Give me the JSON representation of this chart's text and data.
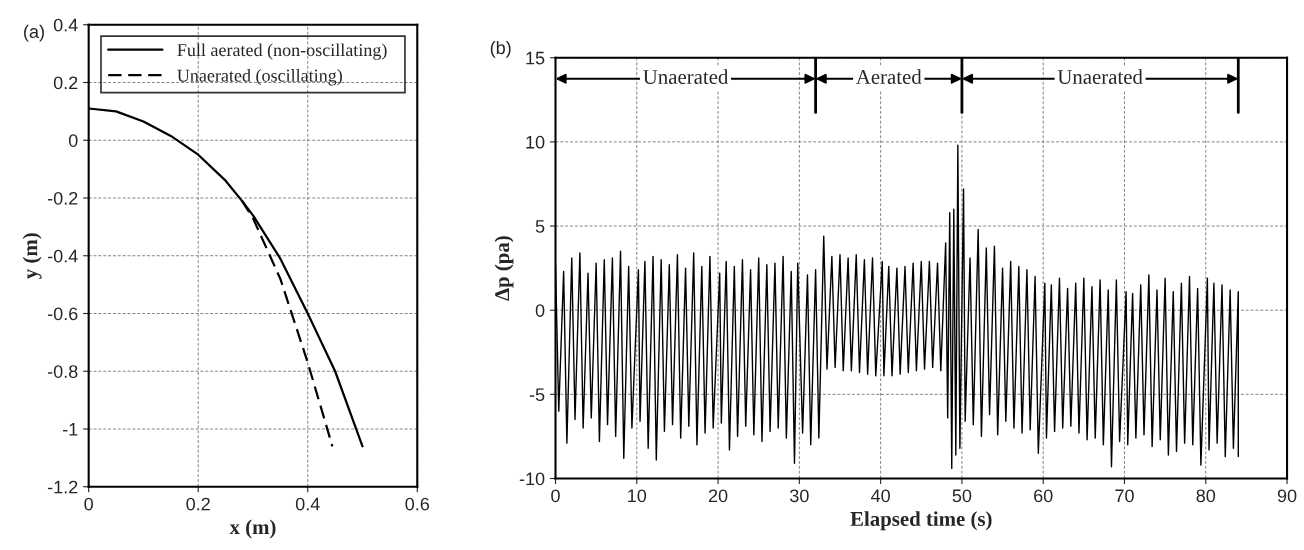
{
  "chart_data": [
    {
      "type": "line",
      "title": "(a)",
      "xlabel": "x (m)",
      "ylabel": "y (m)",
      "xlim": [
        0,
        0.6
      ],
      "ylim": [
        -1.2,
        0.4
      ],
      "xticks": [
        0,
        0.2,
        0.4,
        0.6
      ],
      "yticks": [
        -1.2,
        -1,
        -0.8,
        -0.6,
        -0.4,
        -0.2,
        0,
        0.2,
        0.4
      ],
      "grid": true,
      "legend": "top",
      "series": [
        {
          "name": "Full aerated (non-oscillating)",
          "color": "#000000",
          "line_style": "solid",
          "x": [
            0,
            0.05,
            0.1,
            0.15,
            0.2,
            0.25,
            0.28,
            0.3,
            0.35,
            0.4,
            0.45,
            0.5
          ],
          "values": [
            0.11,
            0.1,
            0.065,
            0.015,
            -0.05,
            -0.14,
            -0.21,
            -0.26,
            -0.41,
            -0.6,
            -0.8,
            -1.06
          ]
        },
        {
          "name": "Unaerated (oscillating)",
          "color": "#000000",
          "line_style": "dashed",
          "x": [
            0.28,
            0.3,
            0.35,
            0.4,
            0.445
          ],
          "values": [
            -0.21,
            -0.27,
            -0.48,
            -0.77,
            -1.06
          ]
        }
      ]
    },
    {
      "type": "line",
      "title": "(b)",
      "xlabel": "Elapsed time (s)",
      "ylabel": "Δp (pa)",
      "xlim": [
        0,
        90
      ],
      "ylim": [
        -10,
        15
      ],
      "xticks": [
        0,
        10,
        20,
        30,
        40,
        50,
        60,
        70,
        80,
        90
      ],
      "yticks": [
        -10,
        -5,
        0,
        5,
        10,
        15
      ],
      "grid": true,
      "ref_lines": [
        {
          "axis": "x",
          "value": 32
        },
        {
          "axis": "x",
          "value": 50
        },
        {
          "axis": "x",
          "value": 84
        }
      ],
      "annotations": [
        "Unaerated",
        "Aerated",
        "Unaerated"
      ],
      "series": [
        {
          "color": "#000000",
          "line_style": "solid",
          "x": [
            0,
            0.4,
            1,
            1.4,
            2,
            2.4,
            3,
            3.4,
            4,
            4.4,
            5,
            5.4,
            6,
            6.4,
            7,
            7.4,
            8,
            8.4,
            9,
            9.4,
            10.2,
            10.4,
            11,
            11.4,
            12,
            12.4,
            13,
            13.4,
            14,
            14.4,
            15,
            15.4,
            16,
            16.4,
            17,
            17.4,
            18,
            18.4,
            19,
            19.4,
            20.2,
            20.4,
            21,
            21.4,
            22,
            22.4,
            23,
            23.4,
            24,
            24.4,
            25,
            25.4,
            26,
            26.4,
            27,
            27.4,
            28,
            28.4,
            29,
            29.4,
            29.8,
            30.4,
            31,
            31.4,
            32,
            32.4,
            33,
            33.4,
            34,
            34.4,
            35,
            35.4,
            36,
            36.4,
            37,
            37.4,
            38,
            38.4,
            39,
            39.4,
            40.2,
            40.4,
            41,
            41.4,
            42,
            42.4,
            43,
            43.4,
            44,
            44.4,
            45,
            45.4,
            46,
            46.4,
            47,
            47.4,
            48,
            48.25,
            48.5,
            48.75,
            49,
            49.25,
            49.5,
            49.75,
            50.2,
            50.4,
            51,
            51.4,
            52,
            52.4,
            53,
            53.4,
            54,
            54.4,
            55,
            55.4,
            56,
            56.4,
            57,
            57.4,
            58,
            58.4,
            59,
            59.4,
            60.2,
            60.4,
            61,
            61.4,
            62,
            62.4,
            63,
            63.4,
            64,
            64.4,
            65,
            65.4,
            66,
            66.4,
            67,
            67.4,
            68,
            68.4,
            69,
            69.4,
            70.2,
            70.4,
            71,
            71.4,
            72,
            72.4,
            73,
            73.4,
            74,
            74.4,
            75,
            75.4,
            76,
            76.4,
            77,
            77.4,
            78,
            78.4,
            79,
            79.4,
            80.2,
            80.4,
            81,
            81.4,
            82,
            82.4,
            83,
            83.4,
            84,
            84
          ],
          "values": [
            2.7,
            -6.0,
            2.3,
            -7.9,
            3.1,
            -6.5,
            3.4,
            -7.0,
            2.2,
            -6.4,
            2.8,
            -7.8,
            3.0,
            -6.8,
            3.1,
            -7.5,
            3.5,
            -8.8,
            2.6,
            -7.0,
            2.4,
            -6.6,
            2.9,
            -8.2,
            3.2,
            -8.9,
            3.0,
            -7.2,
            2.7,
            -6.8,
            3.3,
            -7.6,
            2.5,
            -6.9,
            3.4,
            -8.0,
            2.6,
            -7.3,
            3.2,
            -7.0,
            2.2,
            -6.7,
            2.9,
            -8.3,
            2.6,
            -7.5,
            3.0,
            -6.9,
            2.4,
            -7.4,
            3.1,
            -7.8,
            2.7,
            -7.2,
            2.8,
            -7.0,
            3.2,
            -7.6,
            2.3,
            -9.1,
            2.8,
            -7.3,
            2.1,
            -8.0,
            2.4,
            -7.6,
            4.4,
            -3.5,
            3.2,
            -3.4,
            3.3,
            -3.6,
            3.1,
            -3.6,
            3.3,
            -3.7,
            3.0,
            -3.8,
            3.1,
            -3.9,
            2.9,
            -3.9,
            2.6,
            -3.9,
            2.5,
            -3.8,
            2.6,
            -3.7,
            2.8,
            -3.6,
            2.9,
            -3.5,
            2.9,
            -3.4,
            2.8,
            -3.6,
            4.0,
            -6.4,
            5.8,
            -9.4,
            6.0,
            -8.6,
            9.8,
            -8.2,
            7.2,
            -6.6,
            3.1,
            -6.8,
            4.8,
            -7.5,
            3.7,
            -6.2,
            3.8,
            -7.4,
            2.5,
            -6.6,
            2.9,
            -7.0,
            2.6,
            -7.3,
            2.4,
            -7.1,
            2.0,
            -8.5,
            1.6,
            -7.6,
            1.5,
            -7.2,
            1.9,
            -7.0,
            1.3,
            -6.9,
            1.6,
            -7.3,
            1.9,
            -7.7,
            1.4,
            -7.6,
            1.8,
            -8.0,
            1.2,
            -9.3,
            1.8,
            -7.8,
            1.1,
            -8.0,
            1.0,
            -7.6,
            1.5,
            -7.4,
            2.1,
            -8.1,
            1.2,
            -7.7,
            1.9,
            -8.6,
            1.1,
            -8.4,
            1.6,
            -7.9,
            2.0,
            -8.0,
            1.3,
            -9.2,
            1.9,
            -8.3,
            1.6,
            -7.9,
            1.5,
            -8.7,
            1.2,
            -8.2,
            1.1,
            -8.7
          ]
        }
      ]
    }
  ]
}
